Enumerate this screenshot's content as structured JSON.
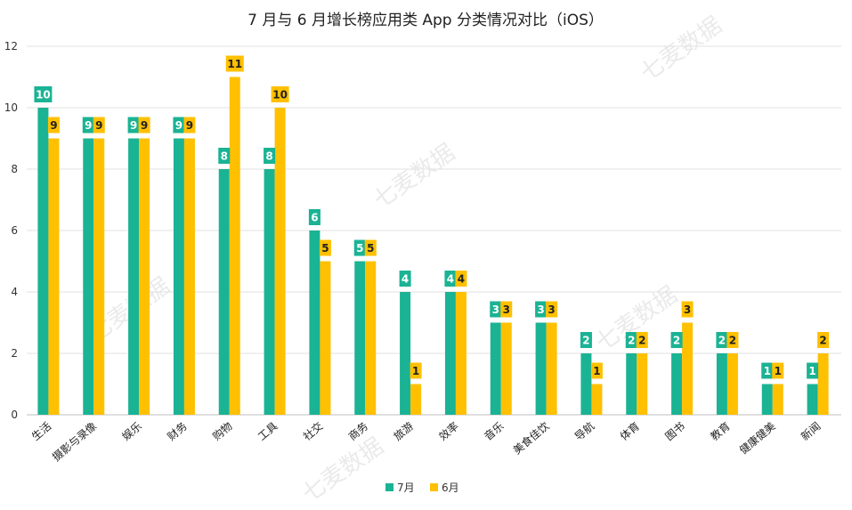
{
  "chart_data": {
    "type": "bar",
    "title": "7 月与 6 月增长榜应用类 App 分类情况对比（iOS）",
    "watermark": "七麦数据",
    "ylim": [
      0,
      12
    ],
    "yticks": [
      0,
      2,
      4,
      6,
      8,
      10,
      12
    ],
    "grid": true,
    "legend_position": "bottom",
    "categories": [
      "生活",
      "摄影与录像",
      "娱乐",
      "财务",
      "购物",
      "工具",
      "社交",
      "商务",
      "旅游",
      "效率",
      "音乐",
      "美食佳饮",
      "导航",
      "体育",
      "图书",
      "教育",
      "健康健美",
      "新闻"
    ],
    "series": [
      {
        "name": "7月",
        "color": "#1ab394",
        "label_bg": "#1ab394",
        "label_color": "#ffffff",
        "values": [
          10,
          9,
          9,
          9,
          8,
          8,
          6,
          5,
          4,
          4,
          3,
          3,
          2,
          2,
          2,
          2,
          1,
          1
        ]
      },
      {
        "name": "6月",
        "color": "#ffc000",
        "label_bg": "#ffc000",
        "label_color": "#222222",
        "values": [
          9,
          9,
          9,
          9,
          11,
          10,
          5,
          5,
          1,
          4,
          3,
          3,
          1,
          2,
          3,
          2,
          1,
          2
        ]
      }
    ]
  }
}
